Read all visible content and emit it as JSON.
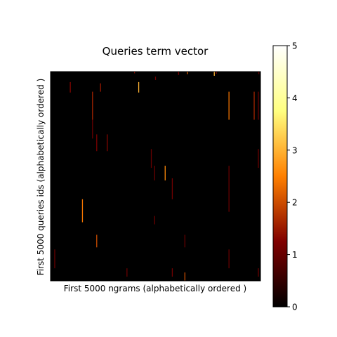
{
  "chart_data": {
    "type": "heatmap",
    "title": "Queries term vector",
    "xlabel": "First 5000 ngrams (alphabetically ordered )",
    "ylabel": "First 5000 queries ids (alphabetically ordered )",
    "colormap": "afmhot",
    "colorbar": {
      "min": 0,
      "max": 5,
      "ticks": [
        "0",
        "1",
        "2",
        "3",
        "4",
        "5"
      ]
    },
    "matrix_shape": [
      5000,
      5000
    ],
    "background_value": 0,
    "nonzero_marks": [
      {
        "col": 2000,
        "rows": [
          0,
          40
        ],
        "value": 1.4
      },
      {
        "col": 3050,
        "rows": [
          0,
          80
        ],
        "value": 1.2
      },
      {
        "col": 3260,
        "rows": [
          0,
          60
        ],
        "value": 2.2
      },
      {
        "col": 3900,
        "rows": [
          0,
          100
        ],
        "value": 3.0
      },
      {
        "col": 3950,
        "rows": [
          0,
          50
        ],
        "value": 1.2
      },
      {
        "col": 4960,
        "rows": [
          0,
          60
        ],
        "value": 1.0
      },
      {
        "col": 2500,
        "rows": [
          120,
          200
        ],
        "value": 1.1
      },
      {
        "col": 470,
        "rows": [
          250,
          500
        ],
        "value": 1.3
      },
      {
        "col": 2100,
        "rows": [
          250,
          500
        ],
        "value": 3.0
      },
      {
        "col": 1190,
        "rows": [
          280,
          480
        ],
        "value": 1.5
      },
      {
        "col": 1000,
        "rows": [
          480,
          1150
        ],
        "value": 1.6
      },
      {
        "col": 1000,
        "rows": [
          1150,
          1600
        ],
        "value": 1.0
      },
      {
        "col": 4250,
        "rows": [
          480,
          1150
        ],
        "value": 2.4
      },
      {
        "col": 4850,
        "rows": [
          480,
          1150
        ],
        "value": 1.6
      },
      {
        "col": 4950,
        "rows": [
          480,
          1150
        ],
        "value": 1.0
      },
      {
        "col": 1100,
        "rows": [
          1500,
          1900
        ],
        "value": 1.2
      },
      {
        "col": 1350,
        "rows": [
          1500,
          1900
        ],
        "value": 1.3
      },
      {
        "col": 2400,
        "rows": [
          1850,
          2300
        ],
        "value": 1.0
      },
      {
        "col": 4950,
        "rows": [
          1850,
          2300
        ],
        "value": 1.0
      },
      {
        "col": 2480,
        "rows": [
          2250,
          2600
        ],
        "value": 1.0
      },
      {
        "col": 2730,
        "rows": [
          2250,
          2600
        ],
        "value": 2.6
      },
      {
        "col": 2900,
        "rows": [
          2550,
          3050
        ],
        "value": 1.1
      },
      {
        "col": 4250,
        "rows": [
          2250,
          3350
        ],
        "value": 1.0
      },
      {
        "col": 760,
        "rows": [
          3050,
          3600
        ],
        "value": 2.4
      },
      {
        "col": 2480,
        "rows": [
          3450,
          3650
        ],
        "value": 1.0
      },
      {
        "col": 1100,
        "rows": [
          3900,
          4200
        ],
        "value": 2.0
      },
      {
        "col": 3200,
        "rows": [
          3900,
          4200
        ],
        "value": 1.0
      },
      {
        "col": 100,
        "rows": [
          4250,
          4700
        ],
        "value": 1.0
      },
      {
        "col": 4250,
        "rows": [
          4250,
          4700
        ],
        "value": 1.0
      },
      {
        "col": 1820,
        "rows": [
          4700,
          4900
        ],
        "value": 1.0
      },
      {
        "col": 2900,
        "rows": [
          4700,
          4900
        ],
        "value": 1.1
      },
      {
        "col": 3200,
        "rows": [
          4800,
          5000
        ],
        "value": 2.0
      },
      {
        "col": 4950,
        "rows": [
          4700,
          4900
        ],
        "value": 1.0
      }
    ]
  }
}
